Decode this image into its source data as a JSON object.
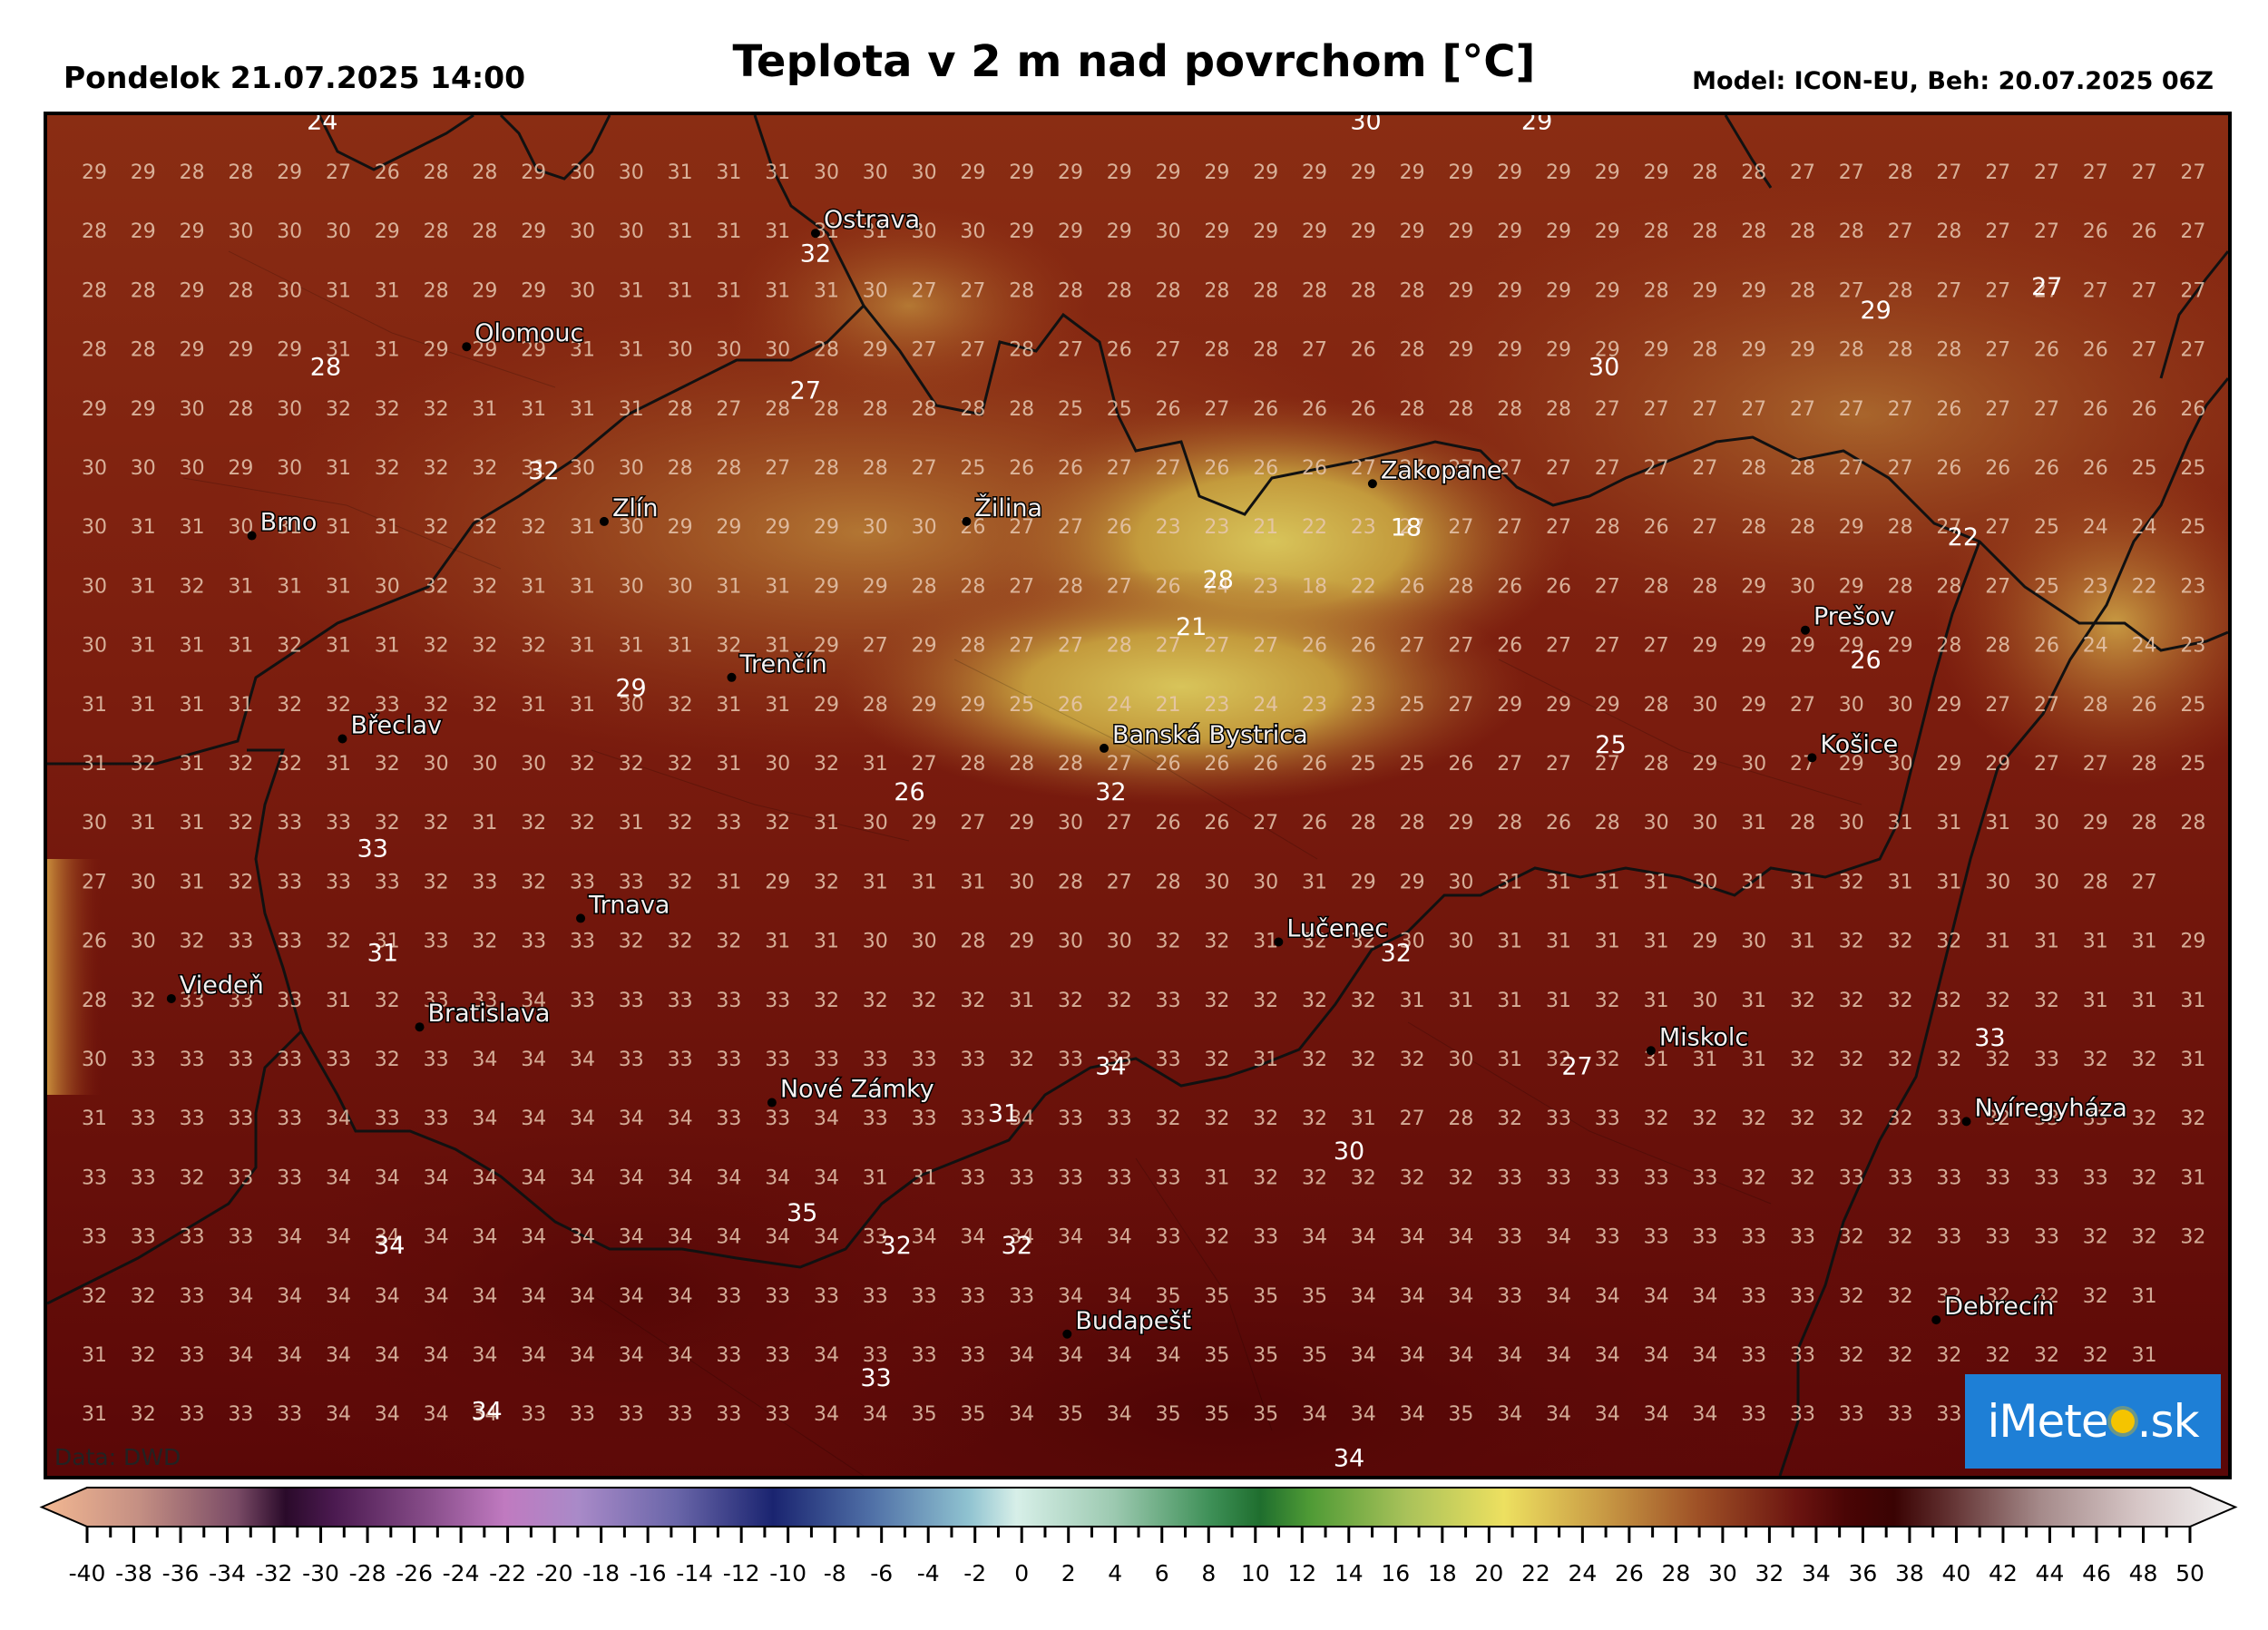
{
  "header": {
    "date": "Pondelok 21.07.2025 14:00",
    "title": "Teplota v 2 m nad povrchom [°C]",
    "model": "Model: ICON-EU, Beh: 20.07.2025 06Z"
  },
  "data_source": "Data: DWD",
  "logo": {
    "left": "iMete",
    "right": ".sk"
  },
  "colors": {
    "hot_dark": "#5a0707",
    "hot": "#7e1a0c",
    "warm": "#a0441c",
    "mild": "#b8772e",
    "cool_mountain": "#c9b04d",
    "border": "#111111",
    "logo_bg": "#1e7fd6"
  },
  "cities": [
    {
      "name": "Ostrava",
      "x": 18.29,
      "y": 49.83
    },
    {
      "name": "Olomouc",
      "x": 17.25,
      "y": 49.59
    },
    {
      "name": "Brno",
      "x": 16.61,
      "y": 49.19
    },
    {
      "name": "Zlín",
      "x": 17.66,
      "y": 49.22
    },
    {
      "name": "Žilina",
      "x": 18.74,
      "y": 49.22
    },
    {
      "name": "Zakopane",
      "x": 19.95,
      "y": 49.3
    },
    {
      "name": "Prešov",
      "x": 21.24,
      "y": 48.99
    },
    {
      "name": "Trenčín",
      "x": 18.04,
      "y": 48.89
    },
    {
      "name": "Banská Bystrica",
      "x": 19.15,
      "y": 48.74
    },
    {
      "name": "Břeclav",
      "x": 16.88,
      "y": 48.76
    },
    {
      "name": "Košice",
      "x": 21.26,
      "y": 48.72
    },
    {
      "name": "Trnava",
      "x": 17.59,
      "y": 48.38
    },
    {
      "name": "Lučenec",
      "x": 19.67,
      "y": 48.33
    },
    {
      "name": "Viedeň",
      "x": 16.37,
      "y": 48.21
    },
    {
      "name": "Bratislava",
      "x": 17.11,
      "y": 48.15
    },
    {
      "name": "Miskolc",
      "x": 20.78,
      "y": 48.1
    },
    {
      "name": "Nové Zámky",
      "x": 18.16,
      "y": 47.99
    },
    {
      "name": "Nyíregyháza",
      "x": 21.72,
      "y": 47.95
    },
    {
      "name": "Budapešť",
      "x": 19.04,
      "y": 47.5
    },
    {
      "name": "Debrecín",
      "x": 21.63,
      "y": 47.53
    }
  ],
  "grid_rows": [
    "29 29 28 28 29 27 26 28 28 29 30 30 31 31 31 30 30 30 29 29 29 29 29 29 29 29 29 29 29 29 29 29 29 28 28 27 27 28 27 27 27 27 27 27",
    "28 29 29 30 30 30 29 28 28 29 30 30 31 31 31 31 31 30 30 29 29 29 30 29 29 29 29 29 29 29 29 29 28 28 28 28 28 27 28 27 27 26 26 27 27",
    "28 28 29 28 30 31 31 28 29 29 30 31 31 31 31 31 30 27 27 28 28 28 28 28 28 28 28 28 29 29 29 29 28 29 29 28 27 28 27 27 27 27 27 27 27",
    "28 28 29 29 29 31 31 29 29 29 31 31 30 30 30 28 29 27 27 28 27 26 27 28 28 27 26 28 29 29 29 29 29 28 29 29 28 28 28 27 26 26 27 27",
    "29 29 30 28 30 32 32 32 31 31 31 31 28 27 28 28 28 28 28 28 25 25 26 27 26 26 26 28 28 28 28 27 27 27 27 27 27 27 26 27 27 26 26 26",
    "30 30 30 29 30 31 32 32 32 31 30 30 28 28 27 28 28 27 25 26 26 27 27 26 26 26 27 27 27 27 27 27 27 27 28 28 27 27 26 26 26 26 25 25 25",
    "30 31 31 30 31 31 31 32 32 32 31 30 29 29 29 29 30 30 26 27 27 26 23 23 21 22 23 27 27 27 27 28 26 27 28 28 29 28 27 27 25 24 24 25 25",
    "30 31 32 31 31 31 30 32 32 31 31 30 30 31 31 29 29 28 28 27 28 27 26 24 23 18 22 26 28 26 26 27 28 28 29 30 29 28 28 27 25 23 22 23 24",
    "30 31 31 31 32 31 31 32 32 32 31 31 31 32 31 29 27 29 28 27 27 28 27 27 27 26 26 27 27 26 27 27 27 29 29 29 29 29 28 28 26 24 24 23 23",
    "31 31 31 31 32 32 33 32 32 31 31 30 32 31 31 29 28 29 29 25 26 24 21 23 24 23 23 25 27 29 29 29 28 30 29 27 30 30 29 27 27 28 26 25 26",
    "31 32 31 32 32 31 32 30 30 30 32 32 32 31 30 32 31 27 28 28 28 27 26 26 26 26 25 25 26 27 27 27 28 29 30 27 29 30 29 29 27 27 28 25 23",
    "30 31 31 32 33 33 32 32 31 32 32 31 32 33 32 31 30 29 27 29 30 27 26 26 27 26 28 28 29 28 26 28 30 30 31 28 30 31 31 31 30 29 28 28 27",
    "27 30 31 32 33 33 33 32 33 32 33 33 32 31 29 32 31 31 31 30 28 27 28 30 30 31 29 29 30 31 31 31 31 30 31 31 32 31 31 30 30 28 27",
    "26 30 32 33 33 32 31 33 32 33 33 32 32 32 31 31 30 30 28 29 30 30 32 32 31 32 32 30 30 31 31 31 31 29 30 31 32 32 32 31 31 31 31 29",
    "28 32 33 33 33 31 32 33 33 34 33 33 33 33 33 32 32 32 32 31 32 32 33 32 32 32 32 31 31 31 31 32 31 30 31 32 32 32 32 32 32 31 31 31",
    "30 33 33 33 33 33 32 33 34 34 34 33 33 33 33 33 33 33 33 32 33 33 33 32 31 32 32 32 30 31 32 32 31 31 31 32 32 32 32 32 33 32 32 31 31",
    "31 33 33 33 33 34 33 33 34 34 34 34 34 33 33 34 33 33 33 34 33 33 32 32 32 32 31 27 28 32 33 33 32 32 32 32 32 32 33 32 33 33 32 32 31",
    "33 33 32 33 33 34 34 34 34 34 34 34 34 34 34 34 31 31 33 33 33 33 33 31 32 32 32 32 32 33 33 33 33 33 32 32 33 33 33 33 33 33 32 31",
    "33 33 33 33 34 34 34 34 34 34 34 34 34 34 34 34 33 34 34 34 34 34 33 32 33 34 34 34 34 33 34 33 33 33 33 33 32 32 33 33 33 32 32 32",
    "32 32 33 34 34 34 34 34 34 34 34 34 34 33 33 33 33 33 33 33 34 34 35 35 35 35 34 34 34 33 34 34 34 34 33 33 32 32 32 32 32 32 31",
    "31 32 33 34 34 34 34 34 34 34 34 34 34 33 33 34 33 33 33 34 34 34 34 35 35 35 34 34 34 34 34 34 34 34 33 33 32 32 32 32 32 32 31",
    "31 32 33 33 33 34 34 34 34 33 33 33 33 33 33 34 34 35 35 34 35 34 35 35 35 34 34 34 35 34 34 34 34 34 33 33 33 33 33"
  ],
  "extra_labels": [
    {
      "v": "24",
      "x": 16.82,
      "y": 50.05
    },
    {
      "v": "30",
      "x": 19.93,
      "y": 50.05
    },
    {
      "v": "29",
      "x": 20.44,
      "y": 50.05
    },
    {
      "v": "32",
      "x": 18.29,
      "y": 49.77
    },
    {
      "v": "27",
      "x": 21.96,
      "y": 49.7
    },
    {
      "v": "29",
      "x": 21.45,
      "y": 49.65
    },
    {
      "v": "28",
      "x": 16.83,
      "y": 49.53
    },
    {
      "v": "30",
      "x": 20.64,
      "y": 49.53
    },
    {
      "v": "27",
      "x": 18.26,
      "y": 49.48
    },
    {
      "v": "32",
      "x": 17.48,
      "y": 49.31
    },
    {
      "v": "18",
      "x": 20.05,
      "y": 49.19
    },
    {
      "v": "22",
      "x": 21.71,
      "y": 49.17
    },
    {
      "v": "28",
      "x": 19.49,
      "y": 49.08
    },
    {
      "v": "21",
      "x": 19.41,
      "y": 48.98
    },
    {
      "v": "26",
      "x": 21.42,
      "y": 48.91
    },
    {
      "v": "29",
      "x": 17.74,
      "y": 48.85
    },
    {
      "v": "25",
      "x": 20.66,
      "y": 48.73
    },
    {
      "v": "26",
      "x": 18.57,
      "y": 48.63
    },
    {
      "v": "32",
      "x": 19.17,
      "y": 48.63
    },
    {
      "v": "33",
      "x": 16.97,
      "y": 48.51
    },
    {
      "v": "31",
      "x": 17.0,
      "y": 48.29
    },
    {
      "v": "32",
      "x": 20.02,
      "y": 48.29
    },
    {
      "v": "33",
      "x": 21.79,
      "y": 48.11
    },
    {
      "v": "34",
      "x": 19.17,
      "y": 48.05
    },
    {
      "v": "27",
      "x": 20.56,
      "y": 48.05
    },
    {
      "v": "31",
      "x": 18.85,
      "y": 47.95
    },
    {
      "v": "30",
      "x": 19.88,
      "y": 47.87
    },
    {
      "v": "35",
      "x": 18.25,
      "y": 47.74
    },
    {
      "v": "34",
      "x": 17.02,
      "y": 47.67
    },
    {
      "v": "32",
      "x": 18.53,
      "y": 47.67
    },
    {
      "v": "32",
      "x": 18.89,
      "y": 47.67
    },
    {
      "v": "33",
      "x": 18.47,
      "y": 47.39
    },
    {
      "v": "34",
      "x": 17.31,
      "y": 47.32
    },
    {
      "v": "34",
      "x": 19.88,
      "y": 47.22
    }
  ],
  "colorbar": {
    "ticks": [
      "-40",
      "-38",
      "-36",
      "-34",
      "-32",
      "-30",
      "-28",
      "-26",
      "-24",
      "-22",
      "-20",
      "-18",
      "-16",
      "-14",
      "-12",
      "-10",
      "-8",
      "-6",
      "-4",
      "-2",
      "0",
      "2",
      "4",
      "6",
      "8",
      "10",
      "12",
      "14",
      "16",
      "18",
      "20",
      "22",
      "24",
      "26",
      "28",
      "30",
      "32",
      "34",
      "36",
      "38",
      "40",
      "42",
      "44",
      "46",
      "48",
      "50"
    ],
    "min": -40,
    "max": 50,
    "stops": [
      [
        -40,
        "#f3b892"
      ],
      [
        -36,
        "#c48f83"
      ],
      [
        -32,
        "#7a4b66"
      ],
      [
        -30,
        "#2a0a2a"
      ],
      [
        -28,
        "#4b1a50"
      ],
      [
        -24,
        "#8a4f8c"
      ],
      [
        -21,
        "#c07ac0"
      ],
      [
        -18,
        "#a98ac8"
      ],
      [
        -14,
        "#6a66a9"
      ],
      [
        -10,
        "#1a2470"
      ],
      [
        -6,
        "#4f6fa6"
      ],
      [
        -2,
        "#8fc2d0"
      ],
      [
        0,
        "#d7efe8"
      ],
      [
        4,
        "#9cc9b0"
      ],
      [
        8,
        "#3d8f56"
      ],
      [
        10,
        "#1f6e2e"
      ],
      [
        12,
        "#4e9a35"
      ],
      [
        16,
        "#a9c25a"
      ],
      [
        20,
        "#ede060"
      ],
      [
        24,
        "#c99b45"
      ],
      [
        28,
        "#9e5026"
      ],
      [
        32,
        "#6b1410"
      ],
      [
        34,
        "#4a0505"
      ],
      [
        36,
        "#3a0303"
      ],
      [
        38,
        "#5d2b2b"
      ],
      [
        42,
        "#a58a8a"
      ],
      [
        46,
        "#d6c6c6"
      ],
      [
        50,
        "#f4f4f4"
      ]
    ]
  }
}
